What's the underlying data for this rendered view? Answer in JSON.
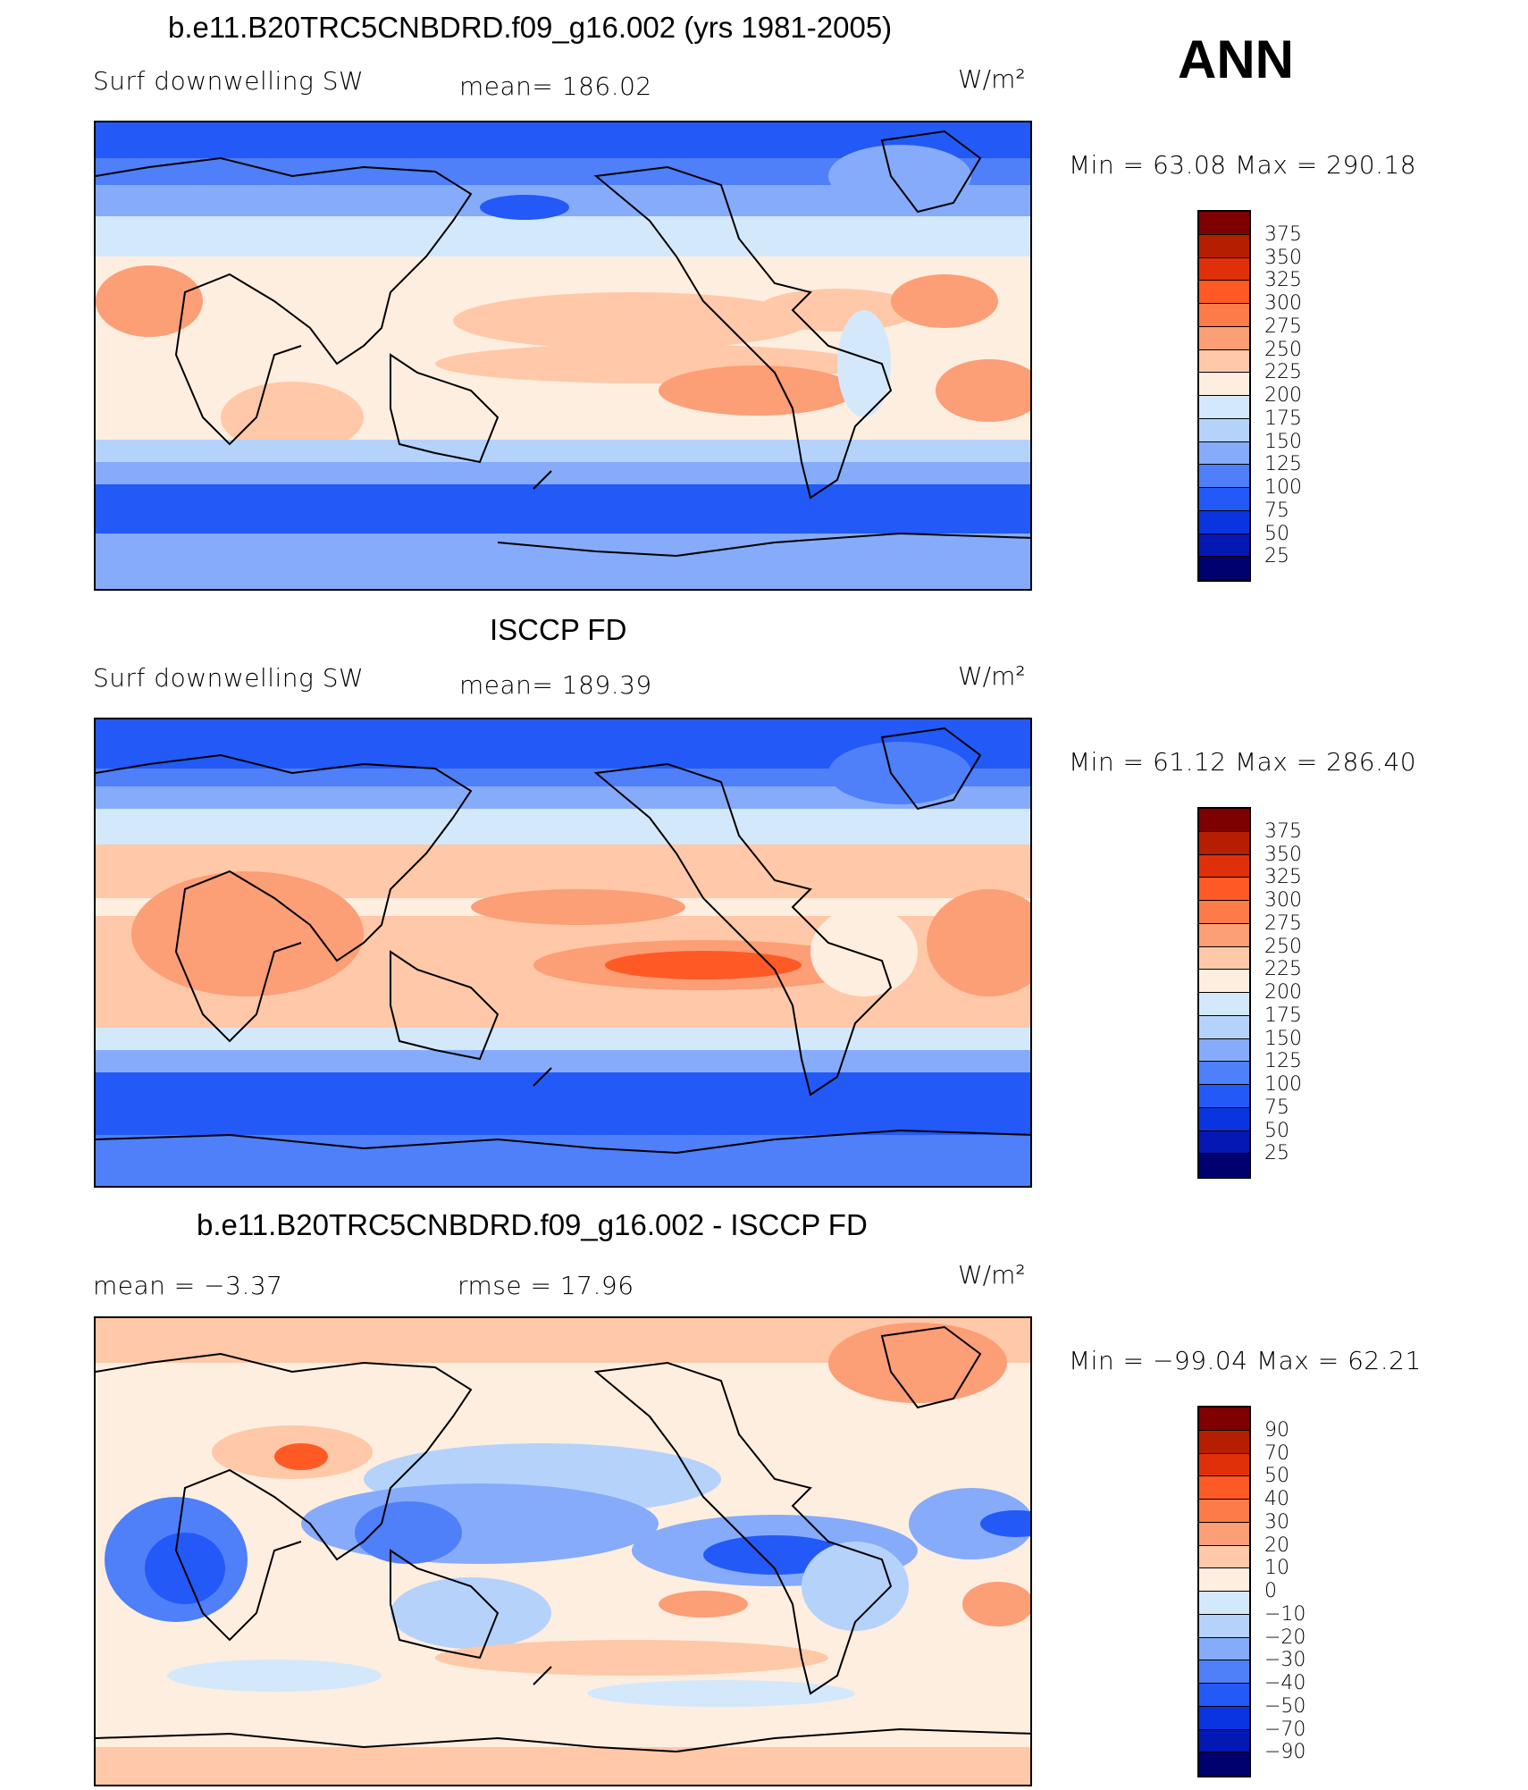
{
  "season": "ANN",
  "panels": [
    {
      "title": "b.e11.B20TRC5CNBDRD.f09_g16.002 (yrs 1981-2005)",
      "left_label": "Surf downwelling SW",
      "center_label": "mean=  186.02",
      "units": "W/m²",
      "minmax": "Min  =    63.08  Max  =  290.18",
      "colorbar_labels": [
        "375",
        "350",
        "325",
        "300",
        "275",
        "250",
        "225",
        "200",
        "175",
        "150",
        "125",
        "100",
        "75",
        "50",
        "25"
      ]
    },
    {
      "title": "ISCCP FD",
      "left_label": "Surf downwelling SW",
      "center_label": "mean=  189.39",
      "units": "W/m²",
      "minmax": "Min  =    61.12  Max  =  286.40",
      "colorbar_labels": [
        "375",
        "350",
        "325",
        "300",
        "275",
        "250",
        "225",
        "200",
        "175",
        "150",
        "125",
        "100",
        "75",
        "50",
        "25"
      ]
    },
    {
      "title": "b.e11.B20TRC5CNBDRD.f09_g16.002 - ISCCP FD",
      "left_label": "mean  =    −3.37",
      "center_label": "rmse  =    17.96",
      "units": "W/m²",
      "minmax": "Min  = −99.04  Max  =    62.21",
      "colorbar_labels": [
        "90",
        "70",
        "50",
        "40",
        "30",
        "20",
        "10",
        "0",
        "−10",
        "−20",
        "−30",
        "−40",
        "−50",
        "−70",
        "−90"
      ]
    }
  ],
  "colors": {
    "abs_scale": [
      "#7f0000",
      "#b51e00",
      "#e0300a",
      "#ff5a26",
      "#fc7b48",
      "#fc9e76",
      "#ffc8a8",
      "#feeee0",
      "#d4e8fb",
      "#b5d2fb",
      "#86abfa",
      "#4f7ff9",
      "#2359f6",
      "#0a34e0",
      "#0418b3",
      "#00006e"
    ],
    "diff_scale": [
      "#7f0000",
      "#b51e00",
      "#e0300a",
      "#ff5a26",
      "#fc7b48",
      "#fc9e76",
      "#ffc8a8",
      "#feeee0",
      "#d4e8fb",
      "#b5d2fb",
      "#86abfa",
      "#4f7ff9",
      "#2359f6",
      "#0a34e0",
      "#0418b3",
      "#00006e"
    ]
  }
}
